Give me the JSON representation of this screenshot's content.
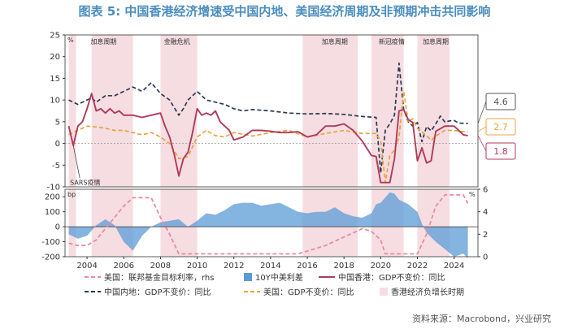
{
  "title": "图表 5: 中国香港经济增速受中国内地、美国经济周期及非预期冲击共同影响",
  "source": "资料来源：Macrobond，兴业研究",
  "chart_data": {
    "type": "line",
    "top_panel": {
      "unit_label": "%",
      "ylim": [
        -10,
        25
      ],
      "yticks": [
        -10,
        -5,
        0,
        5,
        10,
        15,
        20,
        25
      ],
      "series": [
        {
          "name": "中国香港：GDP不变价：同比",
          "color": "#b03a5b",
          "style": "solid",
          "points": [
            [
              2003.0,
              4
            ],
            [
              2003.25,
              -0.5
            ],
            [
              2003.5,
              4
            ],
            [
              2003.75,
              5
            ],
            [
              2004.0,
              8
            ],
            [
              2004.25,
              11.5
            ],
            [
              2004.5,
              7.5
            ],
            [
              2004.75,
              8
            ],
            [
              2005.0,
              7
            ],
            [
              2005.25,
              8
            ],
            [
              2005.5,
              7
            ],
            [
              2005.75,
              7.5
            ],
            [
              2006.0,
              6.5
            ],
            [
              2006.5,
              6.5
            ],
            [
              2007.0,
              6
            ],
            [
              2007.5,
              6.5
            ],
            [
              2008.0,
              7
            ],
            [
              2008.25,
              4
            ],
            [
              2008.5,
              1.5
            ],
            [
              2008.75,
              -2.5
            ],
            [
              2009.0,
              -7.5
            ],
            [
              2009.25,
              -3.5
            ],
            [
              2009.5,
              -2
            ],
            [
              2009.75,
              2.5
            ],
            [
              2010.0,
              8
            ],
            [
              2010.25,
              6.5
            ],
            [
              2010.5,
              7
            ],
            [
              2010.75,
              6.5
            ],
            [
              2011.0,
              7.5
            ],
            [
              2011.25,
              5
            ],
            [
              2011.5,
              4
            ],
            [
              2011.75,
              3
            ],
            [
              2012.0,
              0.8
            ],
            [
              2012.5,
              1.5
            ],
            [
              2013.0,
              3
            ],
            [
              2013.5,
              3
            ],
            [
              2014.0,
              2.8
            ],
            [
              2014.5,
              2.5
            ],
            [
              2015.0,
              2.5
            ],
            [
              2015.5,
              2.7
            ],
            [
              2016.0,
              1.5
            ],
            [
              2016.5,
              2
            ],
            [
              2017.0,
              4
            ],
            [
              2017.5,
              4
            ],
            [
              2018.0,
              4.5
            ],
            [
              2018.5,
              3
            ],
            [
              2019.0,
              0.5
            ],
            [
              2019.5,
              -2.8
            ],
            [
              2019.75,
              -3
            ],
            [
              2020.0,
              -9
            ],
            [
              2020.5,
              -9
            ],
            [
              2020.75,
              -3.5
            ],
            [
              2021.0,
              7.5
            ],
            [
              2021.25,
              7.8
            ],
            [
              2021.5,
              5.5
            ],
            [
              2021.75,
              4.8
            ],
            [
              2022.0,
              -4
            ],
            [
              2022.25,
              -1
            ],
            [
              2022.5,
              -4.5
            ],
            [
              2022.75,
              -4
            ],
            [
              2023.0,
              2.8
            ],
            [
              2023.5,
              4
            ],
            [
              2024.0,
              4
            ],
            [
              2024.25,
              3
            ],
            [
              2024.5,
              2
            ],
            [
              2024.75,
              1.8
            ]
          ]
        },
        {
          "name": "中国内地：GDP不变价：同比",
          "color": "#2b3a55",
          "style": "dashed",
          "points": [
            [
              2003.0,
              10
            ],
            [
              2003.5,
              9
            ],
            [
              2004.0,
              10
            ],
            [
              2004.25,
              10.5
            ],
            [
              2004.5,
              9.5
            ],
            [
              2005.0,
              11
            ],
            [
              2005.5,
              11
            ],
            [
              2006.0,
              12
            ],
            [
              2006.5,
              13
            ],
            [
              2007.0,
              12
            ],
            [
              2007.5,
              14
            ],
            [
              2008.0,
              11.5
            ],
            [
              2008.5,
              10
            ],
            [
              2009.0,
              6.5
            ],
            [
              2009.25,
              8
            ],
            [
              2009.5,
              10
            ],
            [
              2010.0,
              12
            ],
            [
              2010.5,
              10
            ],
            [
              2011.0,
              9.5
            ],
            [
              2011.5,
              9
            ],
            [
              2012.0,
              8
            ],
            [
              2012.5,
              7.5
            ],
            [
              2013.0,
              7.8
            ],
            [
              2014.0,
              7.5
            ],
            [
              2015.0,
              7
            ],
            [
              2016.0,
              6.8
            ],
            [
              2017.0,
              6.9
            ],
            [
              2018.0,
              6.7
            ],
            [
              2019.0,
              6.2
            ],
            [
              2019.75,
              6
            ],
            [
              2020.0,
              -6.8
            ],
            [
              2020.25,
              3
            ],
            [
              2020.5,
              4.5
            ],
            [
              2020.75,
              6.5
            ],
            [
              2021.0,
              18.5
            ],
            [
              2021.25,
              7.9
            ],
            [
              2021.5,
              5
            ],
            [
              2021.75,
              4
            ],
            [
              2022.0,
              4.8
            ],
            [
              2022.25,
              0.4
            ],
            [
              2022.5,
              3.9
            ],
            [
              2022.75,
              2.9
            ],
            [
              2023.0,
              4.5
            ],
            [
              2023.25,
              6.3
            ],
            [
              2023.5,
              4.9
            ],
            [
              2023.75,
              5.2
            ],
            [
              2024.0,
              5.3
            ],
            [
              2024.25,
              4.7
            ],
            [
              2024.75,
              4.6
            ]
          ]
        },
        {
          "name": "美国：GDP不变价：同比",
          "color": "#e8a33c",
          "style": "dashed",
          "points": [
            [
              2003.0,
              2
            ],
            [
              2003.5,
              3
            ],
            [
              2004.0,
              4
            ],
            [
              2004.5,
              3.8
            ],
            [
              2005.0,
              3.5
            ],
            [
              2005.5,
              3
            ],
            [
              2006.0,
              3
            ],
            [
              2006.5,
              2.5
            ],
            [
              2007.0,
              2
            ],
            [
              2007.5,
              2.5
            ],
            [
              2008.0,
              1.5
            ],
            [
              2008.5,
              0
            ],
            [
              2009.0,
              -3.5
            ],
            [
              2009.5,
              -3
            ],
            [
              2010.0,
              1.5
            ],
            [
              2010.5,
              3
            ],
            [
              2011.0,
              1.8
            ],
            [
              2011.5,
              1.5
            ],
            [
              2012.0,
              2.5
            ],
            [
              2013.0,
              1.7
            ],
            [
              2014.0,
              2.5
            ],
            [
              2015.0,
              3
            ],
            [
              2016.0,
              1.5
            ],
            [
              2017.0,
              2.3
            ],
            [
              2018.0,
              3
            ],
            [
              2019.0,
              2.3
            ],
            [
              2019.75,
              2.3
            ],
            [
              2020.0,
              0.5
            ],
            [
              2020.25,
              -9
            ],
            [
              2020.5,
              -2.8
            ],
            [
              2020.75,
              -1.5
            ],
            [
              2021.0,
              1.5
            ],
            [
              2021.25,
              12
            ],
            [
              2021.5,
              5
            ],
            [
              2021.75,
              5.7
            ],
            [
              2022.0,
              3.5
            ],
            [
              2022.5,
              1.8
            ],
            [
              2022.75,
              0.7
            ],
            [
              2023.0,
              1.7
            ],
            [
              2023.5,
              3
            ],
            [
              2024.0,
              3
            ],
            [
              2024.5,
              2.7
            ],
            [
              2024.75,
              2.7
            ]
          ]
        }
      ],
      "callouts": [
        {
          "text": "4.6",
          "y": 4.6,
          "color": "#555555"
        },
        {
          "text": "2.7",
          "y": 2.7,
          "color": "#e8a33c"
        },
        {
          "text": "1.8",
          "y": 1.8,
          "color": "#b03a5b"
        }
      ],
      "shaded_labels": [
        {
          "text": "加息周期",
          "x": 2004.9
        },
        {
          "text": "金融危机",
          "x": 2008.9
        },
        {
          "text": "加息周期",
          "x": 2017.5
        },
        {
          "text": "新冠疫情",
          "x": 2020.6
        },
        {
          "text": "加息周期",
          "x": 2023.0
        }
      ],
      "annotation": {
        "text": "SARS疫情",
        "x": 2003.25,
        "y": -0.5
      }
    },
    "bottom_panel": {
      "left_unit": "bp",
      "right_unit": "%",
      "left_ylim": [
        -200,
        250
      ],
      "left_yticks": [
        -200,
        -100,
        0,
        100,
        200
      ],
      "right_ylim": [
        0,
        6
      ],
      "right_yticks": [
        0,
        2,
        4,
        6
      ],
      "area_series": {
        "name": "10Y中美利差",
        "color": "#5b9bd5",
        "points": [
          [
            2003.0,
            -50
          ],
          [
            2003.5,
            -80
          ],
          [
            2004.0,
            -60
          ],
          [
            2004.5,
            10
          ],
          [
            2005.0,
            50
          ],
          [
            2005.5,
            10
          ],
          [
            2006.0,
            -100
          ],
          [
            2006.5,
            -160
          ],
          [
            2007.0,
            -60
          ],
          [
            2007.5,
            0
          ],
          [
            2008.0,
            30
          ],
          [
            2008.5,
            40
          ],
          [
            2009.0,
            50
          ],
          [
            2009.5,
            0
          ],
          [
            2010.0,
            40
          ],
          [
            2010.5,
            90
          ],
          [
            2011.0,
            80
          ],
          [
            2011.5,
            110
          ],
          [
            2012.0,
            150
          ],
          [
            2012.5,
            160
          ],
          [
            2013.0,
            160
          ],
          [
            2013.5,
            140
          ],
          [
            2014.0,
            150
          ],
          [
            2014.5,
            160
          ],
          [
            2015.0,
            130
          ],
          [
            2015.5,
            100
          ],
          [
            2016.0,
            90
          ],
          [
            2016.5,
            100
          ],
          [
            2017.0,
            100
          ],
          [
            2017.5,
            130
          ],
          [
            2018.0,
            90
          ],
          [
            2018.5,
            70
          ],
          [
            2019.0,
            60
          ],
          [
            2019.5,
            90
          ],
          [
            2019.75,
            150
          ],
          [
            2020.0,
            160
          ],
          [
            2020.5,
            230
          ],
          [
            2020.75,
            220
          ],
          [
            2021.0,
            180
          ],
          [
            2021.5,
            150
          ],
          [
            2022.0,
            100
          ],
          [
            2022.25,
            20
          ],
          [
            2022.5,
            -40
          ],
          [
            2022.75,
            -70
          ],
          [
            2023.0,
            -100
          ],
          [
            2023.5,
            -150
          ],
          [
            2024.0,
            -200
          ],
          [
            2024.5,
            -180
          ],
          [
            2024.75,
            -210
          ]
        ]
      },
      "line_series": {
        "name": "美国：联邦基金目标利率，rhs",
        "color": "#e88b9d",
        "style": "dashed",
        "points": [
          [
            2003.0,
            1.2
          ],
          [
            2003.5,
            1
          ],
          [
            2004.0,
            1
          ],
          [
            2004.5,
            1.5
          ],
          [
            2005.0,
            2.5
          ],
          [
            2005.5,
            3.5
          ],
          [
            2006.0,
            4.5
          ],
          [
            2006.5,
            5.25
          ],
          [
            2007.5,
            5.25
          ],
          [
            2008.0,
            3.5
          ],
          [
            2008.5,
            2
          ],
          [
            2009.0,
            0.25
          ],
          [
            2015.5,
            0.25
          ],
          [
            2016.0,
            0.5
          ],
          [
            2017.0,
            1
          ],
          [
            2018.0,
            1.75
          ],
          [
            2019.0,
            2.5
          ],
          [
            2019.5,
            2.25
          ],
          [
            2020.0,
            1.5
          ],
          [
            2020.25,
            0.25
          ],
          [
            2022.0,
            0.25
          ],
          [
            2022.5,
            2
          ],
          [
            2023.0,
            4.5
          ],
          [
            2023.5,
            5.5
          ],
          [
            2024.5,
            5.5
          ],
          [
            2024.75,
            4.75
          ]
        ]
      }
    },
    "x_axis": {
      "ticks": [
        2004,
        2006,
        2008,
        2010,
        2012,
        2014,
        2016,
        2018,
        2020,
        2022,
        2024
      ],
      "range": [
        2002.8,
        2025.3
      ]
    },
    "shaded_periods": {
      "name": "香港经济负增长时期",
      "color": "#f6dde2",
      "ranges": [
        [
          2003.0,
          2003.4
        ],
        [
          2004.25,
          2006.5
        ],
        [
          2008.0,
          2010.0
        ],
        [
          2015.75,
          2018.75
        ],
        [
          2019.5,
          2021.25
        ],
        [
          2022.0,
          2023.75
        ]
      ]
    },
    "legend": [
      {
        "label": "美国：联邦基金目标利率，rhs",
        "type": "line",
        "color": "#e88b9d",
        "style": "dashed"
      },
      {
        "label": "10Y中美利差",
        "type": "box",
        "color": "#5b9bd5"
      },
      {
        "label": "中国香港：GDP不变价：同比",
        "type": "line",
        "color": "#b03a5b",
        "style": "solid"
      },
      {
        "label": "中国内地：GDP不变价：同比",
        "type": "line",
        "color": "#2b3a55",
        "style": "dashed"
      },
      {
        "label": "美国：GDP不变价：同比",
        "type": "line",
        "color": "#e8a33c",
        "style": "dashed"
      },
      {
        "label": "香港经济负增长时期",
        "type": "box",
        "color": "#f6dde2"
      }
    ]
  }
}
